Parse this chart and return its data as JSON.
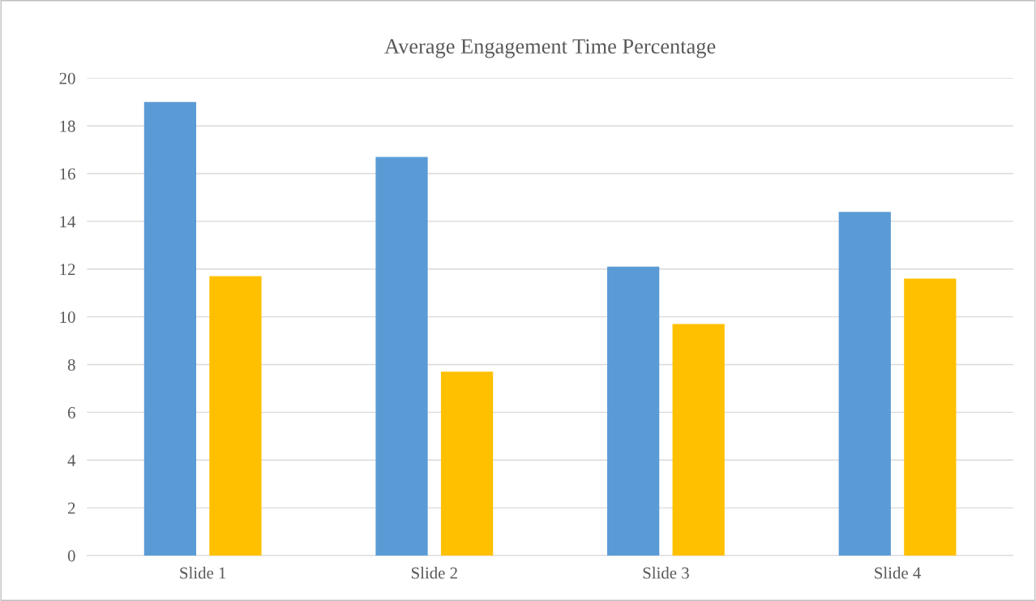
{
  "chart_data": {
    "type": "bar",
    "title": "Average Engagement Time Percentage",
    "categories": [
      "Slide 1",
      "Slide 2",
      "Slide 3",
      "Slide 4"
    ],
    "series": [
      {
        "color": "#5b9bd5",
        "values": [
          19.0,
          16.7,
          12.1,
          14.4
        ]
      },
      {
        "color": "#ffc000",
        "values": [
          11.7,
          7.7,
          9.7,
          11.6
        ]
      }
    ],
    "ylim": [
      0,
      20
    ],
    "yticks": [
      0,
      2,
      4,
      6,
      8,
      10,
      12,
      14,
      16,
      18,
      20
    ],
    "grid": "y"
  }
}
